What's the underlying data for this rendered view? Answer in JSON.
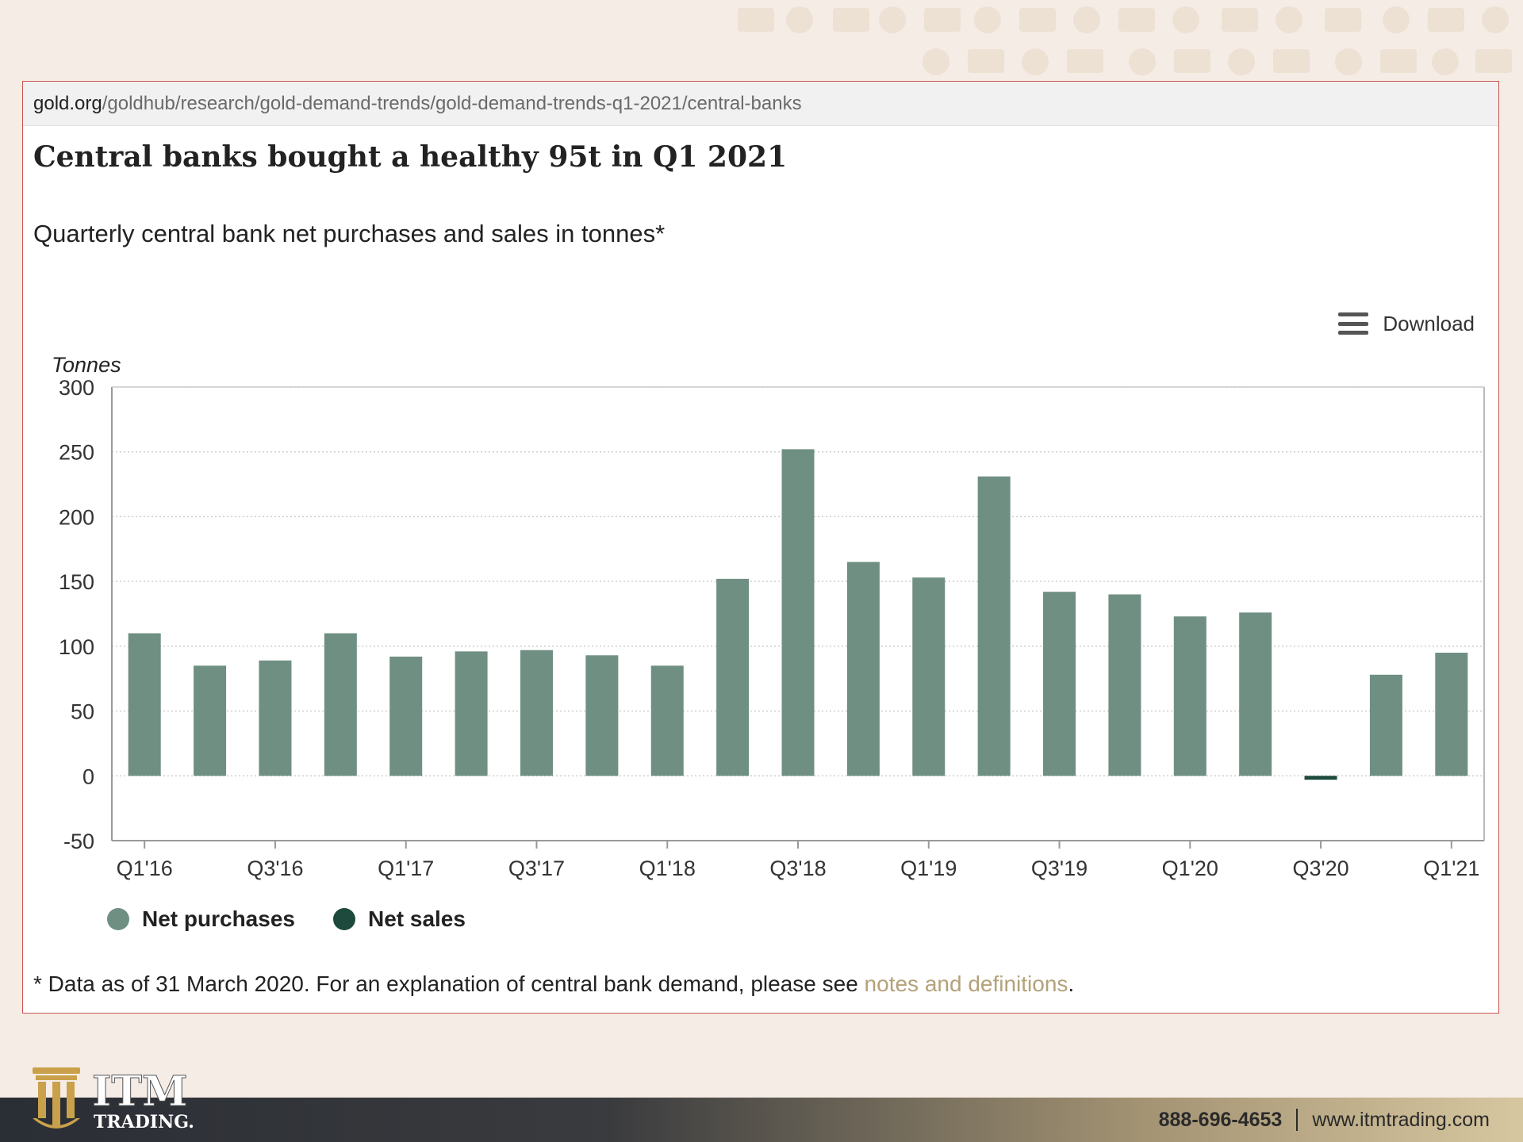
{
  "browser": {
    "url_domain": "gold.org",
    "url_path": "/goldhub/research/gold-demand-trends/gold-demand-trends-q1-2021/central-banks"
  },
  "chart_title": "Central banks bought a healthy 95t in Q1 2021",
  "chart_subtitle": "Quarterly central bank net purchases and sales in tonnes*",
  "download_label": "Download",
  "footnote": {
    "text": "* Data as of 31 March 2020. For an explanation of central bank demand, please see ",
    "link": "notes and definitions",
    "end": "."
  },
  "branding": {
    "logo_main": "ITM",
    "logo_sub": "TRADING.",
    "phone": "888-696-4653",
    "website": "www.itmtrading.com"
  },
  "colors": {
    "net_purchases": "#6f8f82",
    "net_sales": "#1d4a3c",
    "link": "#b3a179"
  },
  "chart_data": {
    "type": "bar",
    "ylabel": "Tonnes",
    "ylim": [
      -50,
      300
    ],
    "yticks": [
      300,
      250,
      200,
      150,
      100,
      50,
      0,
      -50
    ],
    "grid": true,
    "legend_position": "bottom-left",
    "categories": [
      "Q1'16",
      "Q2'16",
      "Q3'16",
      "Q4'16",
      "Q1'17",
      "Q2'17",
      "Q3'17",
      "Q4'17",
      "Q1'18",
      "Q2'18",
      "Q3'18",
      "Q4'18",
      "Q1'19",
      "Q2'19",
      "Q3'19",
      "Q4'19",
      "Q1'20",
      "Q2'20",
      "Q3'20",
      "Q4'20",
      "Q1'21"
    ],
    "x_tick_labels": [
      "Q1'16",
      "Q3'16",
      "Q1'17",
      "Q3'17",
      "Q1'18",
      "Q3'18",
      "Q1'19",
      "Q3'19",
      "Q1'20",
      "Q3'20",
      "Q1'21"
    ],
    "values": [
      110,
      85,
      89,
      110,
      92,
      96,
      97,
      93,
      85,
      152,
      252,
      165,
      153,
      231,
      142,
      140,
      123,
      126,
      -3,
      78,
      95
    ],
    "series": [
      {
        "name": "Net purchases",
        "color": "#6f8f82"
      },
      {
        "name": "Net sales",
        "color": "#1d4a3c"
      }
    ]
  }
}
